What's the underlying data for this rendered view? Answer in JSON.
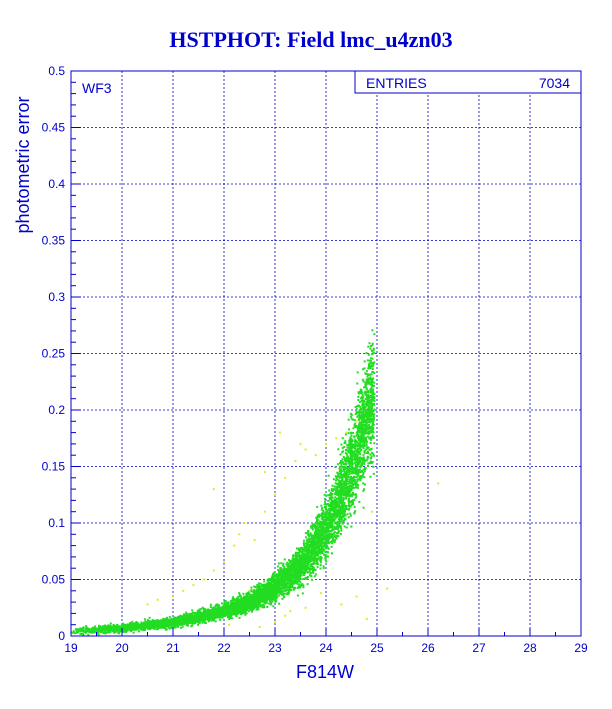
{
  "chart_data": {
    "type": "scatter",
    "title": "HSTPHOT: Field lmc_u4zn03",
    "xlabel": "F814W",
    "ylabel": "photometric error",
    "xlim": [
      19,
      29
    ],
    "ylim": [
      0,
      0.5
    ],
    "x_ticks": [
      "19",
      "20",
      "21",
      "22",
      "23",
      "24",
      "25",
      "26",
      "27",
      "28",
      "29"
    ],
    "y_ticks": [
      "0",
      "0.05",
      "0.1",
      "0.15",
      "0.2",
      "0.25",
      "0.3",
      "0.35",
      "0.4",
      "0.45",
      "0.5"
    ],
    "grid": true,
    "annotation": "WF3",
    "stats_box": {
      "label": "ENTRIES",
      "value": "7034"
    },
    "colors": {
      "axes": "#0000cc",
      "grid": "#0000cc",
      "main": "#22dd22",
      "secondary": "#e8e820"
    },
    "series": [
      {
        "color": "#22dd22",
        "curve": [
          [
            19.0,
            0.004
          ],
          [
            20.0,
            0.007
          ],
          [
            21.0,
            0.012
          ],
          [
            22.0,
            0.022
          ],
          [
            22.5,
            0.03
          ],
          [
            23.0,
            0.043
          ],
          [
            23.5,
            0.062
          ],
          [
            24.0,
            0.095
          ],
          [
            24.3,
            0.125
          ],
          [
            24.5,
            0.15
          ],
          [
            24.7,
            0.18
          ],
          [
            24.9,
            0.21
          ]
        ],
        "spread_fraction": 0.22,
        "x_range": [
          19.0,
          24.95
        ],
        "count": 6600
      },
      {
        "color": "#e8e820",
        "points": [
          [
            20.5,
            0.028
          ],
          [
            20.7,
            0.032
          ],
          [
            21.0,
            0.035
          ],
          [
            21.2,
            0.04
          ],
          [
            21.4,
            0.045
          ],
          [
            21.6,
            0.05
          ],
          [
            21.8,
            0.058
          ],
          [
            22.0,
            0.065
          ],
          [
            22.2,
            0.08
          ],
          [
            22.3,
            0.09
          ],
          [
            22.4,
            0.1
          ],
          [
            22.6,
            0.085
          ],
          [
            22.8,
            0.11
          ],
          [
            23.0,
            0.125
          ],
          [
            23.2,
            0.14
          ],
          [
            23.4,
            0.155
          ],
          [
            23.6,
            0.165
          ],
          [
            23.8,
            0.16
          ],
          [
            24.0,
            0.17
          ],
          [
            24.2,
            0.175
          ],
          [
            24.4,
            0.18
          ],
          [
            24.6,
            0.19
          ],
          [
            21.8,
            0.13
          ],
          [
            22.8,
            0.145
          ],
          [
            23.1,
            0.18
          ],
          [
            23.5,
            0.17
          ],
          [
            22.7,
            0.008
          ],
          [
            23.0,
            0.012
          ],
          [
            23.3,
            0.022
          ],
          [
            23.6,
            0.025
          ],
          [
            23.9,
            0.038
          ],
          [
            24.3,
            0.028
          ],
          [
            24.6,
            0.035
          ],
          [
            25.2,
            0.042
          ],
          [
            24.8,
            0.015
          ],
          [
            23.2,
            0.018
          ],
          [
            26.2,
            0.135
          ],
          [
            24.9,
            0.11
          ],
          [
            22.5,
            0.04
          ],
          [
            22.1,
            0.01
          ]
        ]
      }
    ]
  }
}
